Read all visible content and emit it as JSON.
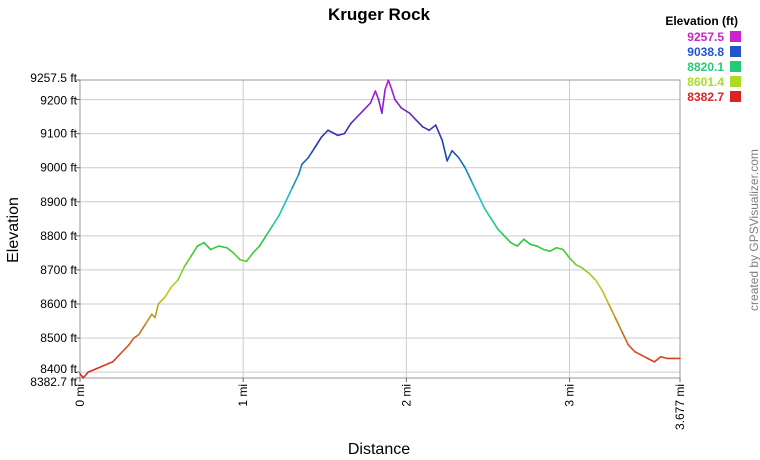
{
  "chart_data": {
    "type": "line",
    "title": "Kruger Rock",
    "xlabel": "Distance",
    "ylabel": "Elevation",
    "x_unit": "mi",
    "y_unit": "ft",
    "xlim": [
      0,
      3.677
    ],
    "ylim": [
      8382.7,
      9257.5
    ],
    "xticks": [
      {
        "value": 0,
        "label": "0 mi"
      },
      {
        "value": 1,
        "label": "1 mi"
      },
      {
        "value": 2,
        "label": "2 mi"
      },
      {
        "value": 3,
        "label": "3 mi"
      },
      {
        "value": 3.677,
        "label": "3.677 mi"
      }
    ],
    "yticks": [
      {
        "value": 8382.7,
        "label": "8382.7 ft"
      },
      {
        "value": 8400,
        "label": "8400 ft"
      },
      {
        "value": 8500,
        "label": "8500 ft"
      },
      {
        "value": 8600,
        "label": "8600 ft"
      },
      {
        "value": 8700,
        "label": "8700 ft"
      },
      {
        "value": 8800,
        "label": "8800 ft"
      },
      {
        "value": 8900,
        "label": "8900 ft"
      },
      {
        "value": 9000,
        "label": "9000 ft"
      },
      {
        "value": 9100,
        "label": "9100 ft"
      },
      {
        "value": 9200,
        "label": "9200 ft"
      },
      {
        "value": 9257.5,
        "label": "9257.5 ft"
      }
    ],
    "grid": true,
    "legend": {
      "title": "Elevation (ft)",
      "placement": "top-right",
      "entries": [
        {
          "label": "9257.5",
          "color": "#cc22cc"
        },
        {
          "label": "9038.8",
          "color": "#2255cc"
        },
        {
          "label": "8820.1",
          "color": "#22cc77"
        },
        {
          "label": "8601.4",
          "color": "#aadd22"
        },
        {
          "label": "8382.7",
          "color": "#dd2222"
        }
      ]
    },
    "series": [
      {
        "values": [
          [
            0.0,
            8395
          ],
          [
            0.02,
            8383
          ],
          [
            0.05,
            8400
          ],
          [
            0.1,
            8410
          ],
          [
            0.15,
            8420
          ],
          [
            0.2,
            8430
          ],
          [
            0.25,
            8455
          ],
          [
            0.3,
            8480
          ],
          [
            0.33,
            8500
          ],
          [
            0.36,
            8510
          ],
          [
            0.4,
            8540
          ],
          [
            0.44,
            8570
          ],
          [
            0.46,
            8560
          ],
          [
            0.48,
            8600
          ],
          [
            0.52,
            8620
          ],
          [
            0.56,
            8650
          ],
          [
            0.6,
            8670
          ],
          [
            0.64,
            8710
          ],
          [
            0.68,
            8740
          ],
          [
            0.72,
            8770
          ],
          [
            0.76,
            8780
          ],
          [
            0.8,
            8760
          ],
          [
            0.85,
            8770
          ],
          [
            0.9,
            8765
          ],
          [
            0.94,
            8750
          ],
          [
            0.98,
            8730
          ],
          [
            1.02,
            8725
          ],
          [
            1.06,
            8750
          ],
          [
            1.1,
            8770
          ],
          [
            1.14,
            8800
          ],
          [
            1.18,
            8830
          ],
          [
            1.22,
            8860
          ],
          [
            1.26,
            8900
          ],
          [
            1.3,
            8940
          ],
          [
            1.34,
            8980
          ],
          [
            1.36,
            9010
          ],
          [
            1.4,
            9030
          ],
          [
            1.44,
            9060
          ],
          [
            1.48,
            9090
          ],
          [
            1.52,
            9110
          ],
          [
            1.58,
            9095
          ],
          [
            1.62,
            9100
          ],
          [
            1.66,
            9130
          ],
          [
            1.7,
            9150
          ],
          [
            1.74,
            9170
          ],
          [
            1.78,
            9190
          ],
          [
            1.81,
            9225
          ],
          [
            1.83,
            9200
          ],
          [
            1.85,
            9160
          ],
          [
            1.87,
            9230
          ],
          [
            1.89,
            9257
          ],
          [
            1.91,
            9230
          ],
          [
            1.93,
            9200
          ],
          [
            1.97,
            9175
          ],
          [
            2.02,
            9160
          ],
          [
            2.06,
            9140
          ],
          [
            2.1,
            9120
          ],
          [
            2.14,
            9110
          ],
          [
            2.18,
            9125
          ],
          [
            2.22,
            9080
          ],
          [
            2.25,
            9020
          ],
          [
            2.28,
            9050
          ],
          [
            2.32,
            9030
          ],
          [
            2.36,
            9000
          ],
          [
            2.4,
            8960
          ],
          [
            2.44,
            8920
          ],
          [
            2.48,
            8880
          ],
          [
            2.52,
            8850
          ],
          [
            2.56,
            8820
          ],
          [
            2.6,
            8800
          ],
          [
            2.64,
            8780
          ],
          [
            2.68,
            8770
          ],
          [
            2.72,
            8790
          ],
          [
            2.76,
            8775
          ],
          [
            2.8,
            8770
          ],
          [
            2.84,
            8760
          ],
          [
            2.88,
            8755
          ],
          [
            2.92,
            8765
          ],
          [
            2.96,
            8760
          ],
          [
            3.0,
            8735
          ],
          [
            3.04,
            8715
          ],
          [
            3.08,
            8705
          ],
          [
            3.12,
            8690
          ],
          [
            3.16,
            8670
          ],
          [
            3.2,
            8640
          ],
          [
            3.24,
            8600
          ],
          [
            3.28,
            8560
          ],
          [
            3.32,
            8520
          ],
          [
            3.36,
            8480
          ],
          [
            3.4,
            8460
          ],
          [
            3.44,
            8450
          ],
          [
            3.48,
            8440
          ],
          [
            3.52,
            8430
          ],
          [
            3.56,
            8445
          ],
          [
            3.6,
            8440
          ],
          [
            3.677,
            8440
          ]
        ]
      }
    ]
  },
  "credit_text": "created by GPSVisualizer.com"
}
